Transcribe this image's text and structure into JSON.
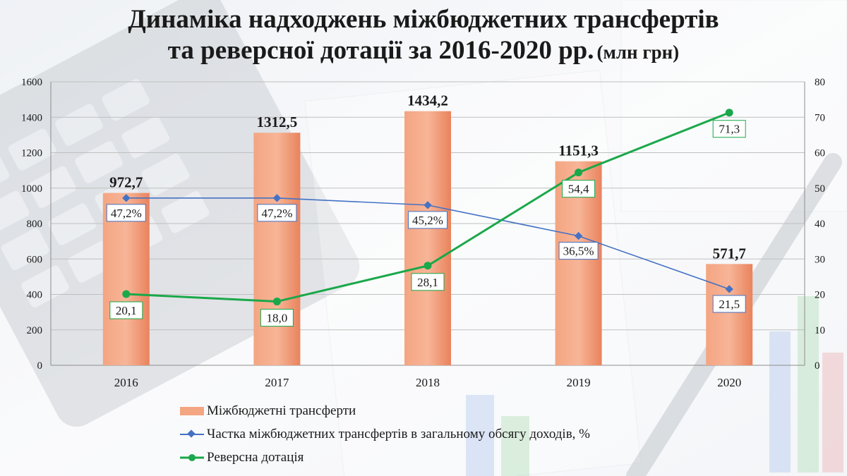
{
  "title": {
    "line1": "Динаміка надходжень міжбюджетних трансфертів",
    "line2": "та реверсної дотації за 2016-2020 рр.",
    "unit": "(млн грн)"
  },
  "colors": {
    "bar": "#f4a582",
    "bar_dark": "#e9835d",
    "share_line": "#4472c4",
    "reverse_line": "#1aa84a",
    "grid": "#bfbfbf",
    "text": "#1a1a1a"
  },
  "chart_data": {
    "type": "bar",
    "categories": [
      "2016",
      "2017",
      "2018",
      "2019",
      "2020"
    ],
    "y_left": {
      "min": 0,
      "max": 1600,
      "step": 200
    },
    "y_right": {
      "min": 0,
      "max": 80,
      "step": 10
    },
    "grid": true,
    "legend_position": "bottom",
    "series": [
      {
        "name": "Міжбюджетні трансферти",
        "type": "bar",
        "axis": "left",
        "values": [
          972.7,
          1312.5,
          1434.2,
          1151.3,
          571.7
        ],
        "labels": [
          "972,7",
          "1312,5",
          "1434,2",
          "1151,3",
          "571,7"
        ]
      },
      {
        "name": "Частка міжбюджетних трансфертів в загальному обсягу доходів, %",
        "type": "line",
        "axis": "right",
        "marker": "diamond",
        "values": [
          47.2,
          47.2,
          45.2,
          36.5,
          21.5
        ],
        "labels": [
          "47,2%",
          "47,2%",
          "45,2%",
          "36,5%",
          "21,5"
        ]
      },
      {
        "name": "Реверсна дотація",
        "type": "line",
        "axis": "right",
        "marker": "circle",
        "values": [
          20.1,
          18.0,
          28.1,
          54.4,
          71.3
        ],
        "labels": [
          "20,1",
          "18,0",
          "28,1",
          "54,4",
          "71,3"
        ]
      }
    ]
  }
}
